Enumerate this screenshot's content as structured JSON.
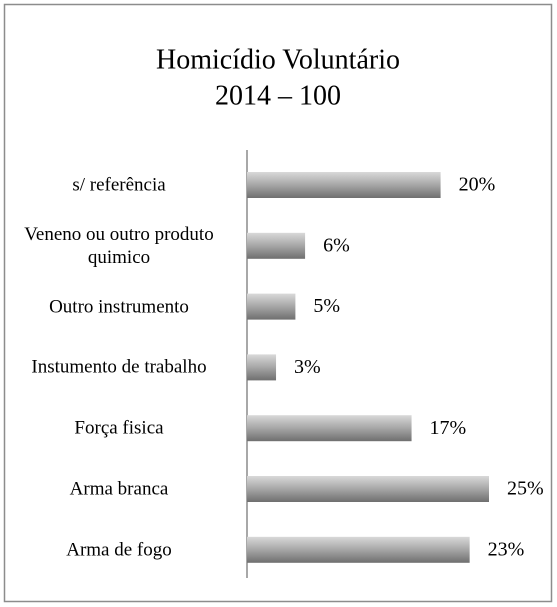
{
  "chart_data": {
    "type": "bar",
    "orientation": "horizontal",
    "title": "Homicídio Voluntário",
    "subtitle": "2014 – 100",
    "categories": [
      "s/ referência",
      "Veneno ou outro produto quimico",
      "Outro instrumento",
      "Instumento de trabalho",
      "Força fisica",
      "Arma branca",
      "Arma de fogo"
    ],
    "values": [
      20,
      6,
      5,
      3,
      17,
      25,
      23
    ],
    "value_labels": [
      "20%",
      "6%",
      "5%",
      "3%",
      "17%",
      "25%",
      "23%"
    ],
    "color": "#9a9a9a"
  }
}
